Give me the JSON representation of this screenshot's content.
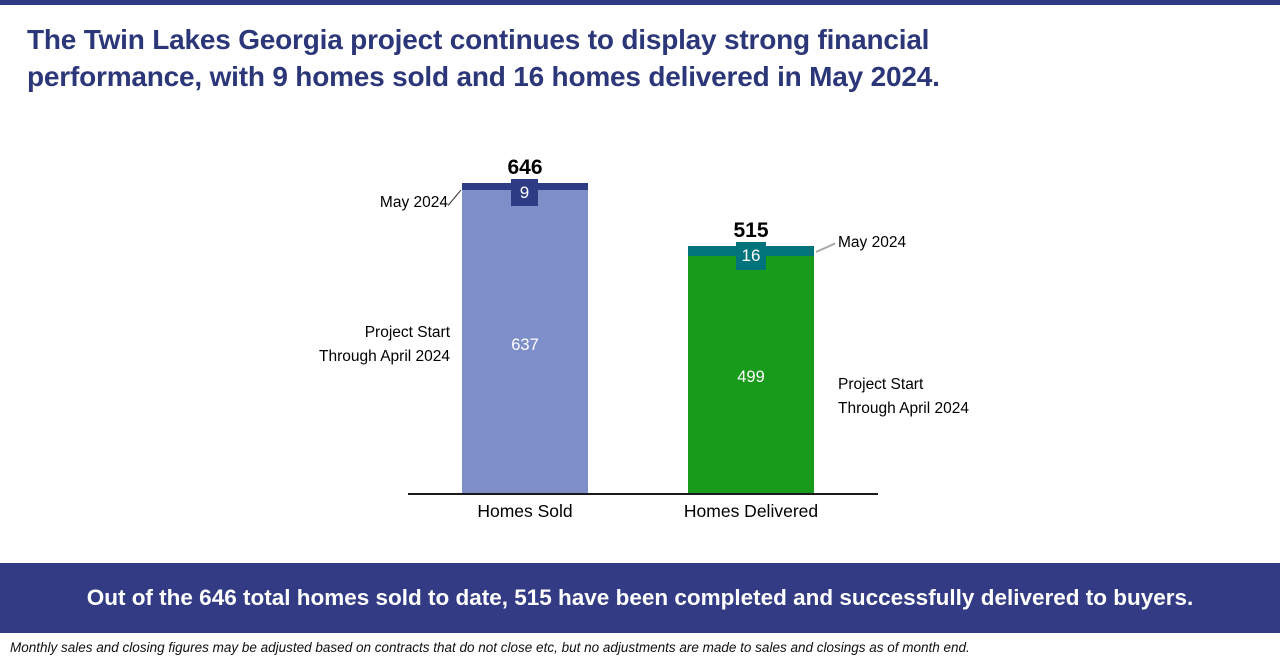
{
  "title": {
    "line1": "The Twin Lakes Georgia project continues to display strong financial",
    "line2": "performance, with 9 homes sold and 16 homes delivered in May 2024."
  },
  "chart_data": {
    "type": "bar",
    "subtype": "stacked",
    "categories": [
      "Homes Sold",
      "Homes Delivered"
    ],
    "series": [
      {
        "name": "Project Start Through April 2024",
        "values": [
          637,
          499
        ]
      },
      {
        "name": "May 2024",
        "values": [
          9,
          16
        ]
      }
    ],
    "totals": [
      646,
      515
    ],
    "title": "",
    "xlabel": "",
    "ylabel": "",
    "ylim": [
      0,
      700
    ],
    "grid": false,
    "legend_position": "none (callout labels beside bars)",
    "colors": {
      "homes_sold_prior": "#7D8EC8",
      "homes_sold_may": "#2E3C86",
      "homes_delivered_prior": "#189A1A",
      "homes_delivered_may": "#00747A"
    }
  },
  "chart": {
    "bars": [
      {
        "category": "Homes Sold",
        "total": "646",
        "may": "9",
        "prior": "637"
      },
      {
        "category": "Homes Delivered",
        "total": "515",
        "may": "16",
        "prior": "499"
      }
    ],
    "callouts": {
      "may_left": "May 2024",
      "may_right": "May 2024",
      "prior_left_line1": "Project Start",
      "prior_left_line2": "Through April 2024",
      "prior_right_line1": "Project Start",
      "prior_right_line2": "Through April 2024"
    }
  },
  "banner": {
    "text": "Out of the 646 total homes sold to date, 515 have been completed and successfully delivered to buyers.",
    "background": "#333B84"
  },
  "footnote": "Monthly sales and closing figures may be adjusted based on contracts that do not close etc, but no adjustments are made to sales and closings as of month end.",
  "accent_colors": {
    "navy": "#2F3A84",
    "title_navy": "#2C3779"
  }
}
